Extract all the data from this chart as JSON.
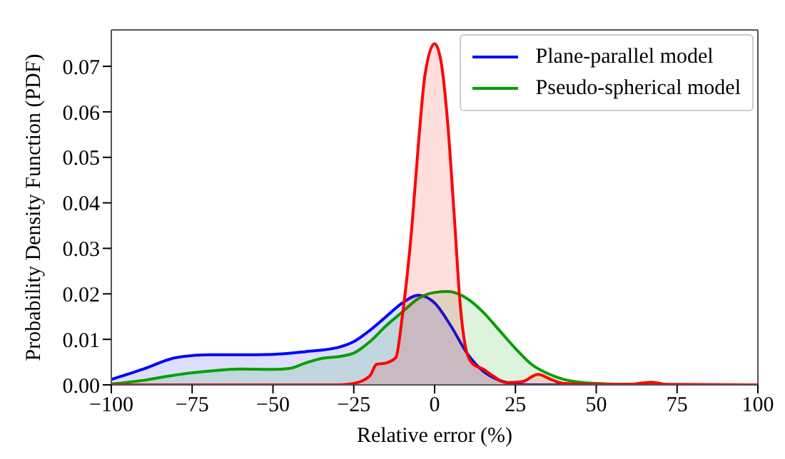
{
  "chart_data": {
    "type": "area",
    "xlabel": "Relative error (%)",
    "ylabel": "Probability Density Function (PDF)",
    "xlim": [
      -100,
      100
    ],
    "xticks": [
      -100,
      -75,
      -50,
      -25,
      0,
      25,
      50,
      75,
      100
    ],
    "ylim": [
      0,
      0.078
    ],
    "yticks": [
      {
        "value": 0,
        "label": "0.00"
      },
      0.01,
      0.02,
      0.03,
      0.04,
      0.05,
      0.06,
      0.07
    ],
    "grid": false,
    "legend": "top right",
    "marker": "none",
    "line_style": "solid",
    "series": [
      {
        "name": "Plane-parallel model",
        "color": "#0000ff",
        "x": [
          -100,
          -90,
          -80,
          -70,
          -60,
          -50,
          -40,
          -30,
          -25,
          -20,
          -15,
          -10,
          -5,
          0,
          5,
          10,
          15,
          20,
          25,
          30,
          100
        ],
        "values": [
          0.0012,
          0.0035,
          0.006,
          0.0066,
          0.0066,
          0.0067,
          0.0073,
          0.0082,
          0.0095,
          0.012,
          0.015,
          0.018,
          0.0197,
          0.018,
          0.013,
          0.007,
          0.003,
          0.001,
          0.0002,
          0,
          0
        ]
      },
      {
        "name": "Pseudo-spherical model",
        "color": "#00a000",
        "x": [
          -100,
          -90,
          -80,
          -70,
          -60,
          -50,
          -45,
          -40,
          -35,
          -30,
          -25,
          -20,
          -15,
          -10,
          -5,
          0,
          4,
          10,
          15,
          20,
          25,
          30,
          35,
          40,
          50,
          60,
          75,
          100
        ],
        "values": [
          0.0002,
          0.001,
          0.0022,
          0.003,
          0.0035,
          0.0034,
          0.0036,
          0.0048,
          0.0058,
          0.0062,
          0.007,
          0.0095,
          0.013,
          0.016,
          0.019,
          0.0203,
          0.0205,
          0.019,
          0.016,
          0.012,
          0.008,
          0.0045,
          0.0025,
          0.0012,
          0.0003,
          0.0001,
          0,
          0
        ]
      },
      {
        "color": "#ff0000",
        "x": [
          -100,
          -30,
          -25,
          -20,
          -18,
          -15,
          -12,
          -10,
          -7,
          -5,
          -3,
          0,
          2,
          4,
          6,
          8,
          10,
          12,
          15,
          18,
          22,
          27,
          32,
          36,
          40,
          50,
          60,
          67,
          72,
          100
        ],
        "values": [
          0,
          0,
          0.0003,
          0.002,
          0.0045,
          0.0048,
          0.006,
          0.015,
          0.035,
          0.053,
          0.068,
          0.075,
          0.071,
          0.058,
          0.038,
          0.017,
          0.007,
          0.0045,
          0.0035,
          0.002,
          0.0005,
          0.0007,
          0.0023,
          0.0012,
          0.0003,
          0.0001,
          0.0001,
          0.0006,
          0.0001,
          0
        ]
      }
    ]
  }
}
